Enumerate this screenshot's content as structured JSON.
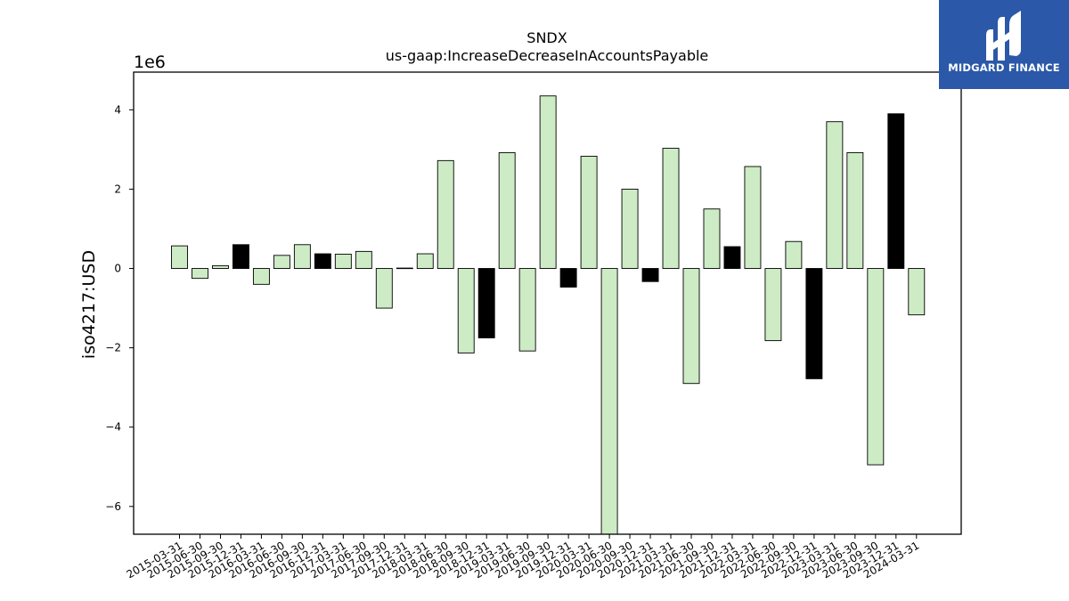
{
  "brand": {
    "name": "MIDGARD FINANCE",
    "color": "#2b58a8"
  },
  "chart_data": {
    "type": "bar",
    "title": "SNDX",
    "subtitle": "us-gaap:IncreaseDecreaseInAccountsPayable",
    "ylabel": "iso4217:USD",
    "xlabel": "",
    "y_scale_label": "1e6",
    "y_unit_multiplier": 1000000,
    "ylim": [
      -6.7,
      4.95
    ],
    "yticks": [
      -6,
      -4,
      -2,
      0,
      2,
      4
    ],
    "grid": false,
    "colors": {
      "default": "#cdebc5",
      "highlight": "#000000",
      "edge": "#000000"
    },
    "categories": [
      "2015-03-31",
      "2015-06-30",
      "2015-09-30",
      "2015-12-31",
      "2016-03-31",
      "2016-06-30",
      "2016-09-30",
      "2016-12-31",
      "2017-03-31",
      "2017-06-30",
      "2017-09-30",
      "2017-12-31",
      "2018-03-31",
      "2018-06-30",
      "2018-09-30",
      "2018-12-31",
      "2019-03-31",
      "2019-06-30",
      "2019-09-30",
      "2019-12-31",
      "2020-03-31",
      "2020-06-30",
      "2020-09-30",
      "2020-12-31",
      "2021-03-31",
      "2021-06-30",
      "2021-09-30",
      "2021-12-31",
      "2022-03-31",
      "2022-06-30",
      "2022-09-30",
      "2022-12-31",
      "2023-03-31",
      "2023-06-30",
      "2023-09-30",
      "2023-12-31",
      "2024-03-31"
    ],
    "values": [
      0.57,
      -0.25,
      0.07,
      0.6,
      -0.4,
      0.33,
      0.6,
      0.37,
      0.36,
      0.43,
      -1.0,
      0.01,
      0.37,
      2.72,
      -2.13,
      -1.75,
      2.92,
      -2.08,
      4.35,
      -0.47,
      2.83,
      -6.7,
      2.0,
      -0.33,
      3.03,
      -2.9,
      1.5,
      0.55,
      2.57,
      -1.82,
      0.68,
      -2.78,
      3.7,
      2.92,
      -4.95,
      3.9,
      -1.17
    ],
    "highlight": [
      false,
      false,
      false,
      true,
      false,
      false,
      false,
      true,
      false,
      false,
      false,
      false,
      false,
      false,
      false,
      true,
      false,
      false,
      false,
      true,
      false,
      false,
      false,
      true,
      false,
      false,
      false,
      true,
      false,
      false,
      false,
      true,
      false,
      false,
      false,
      true,
      false
    ]
  }
}
